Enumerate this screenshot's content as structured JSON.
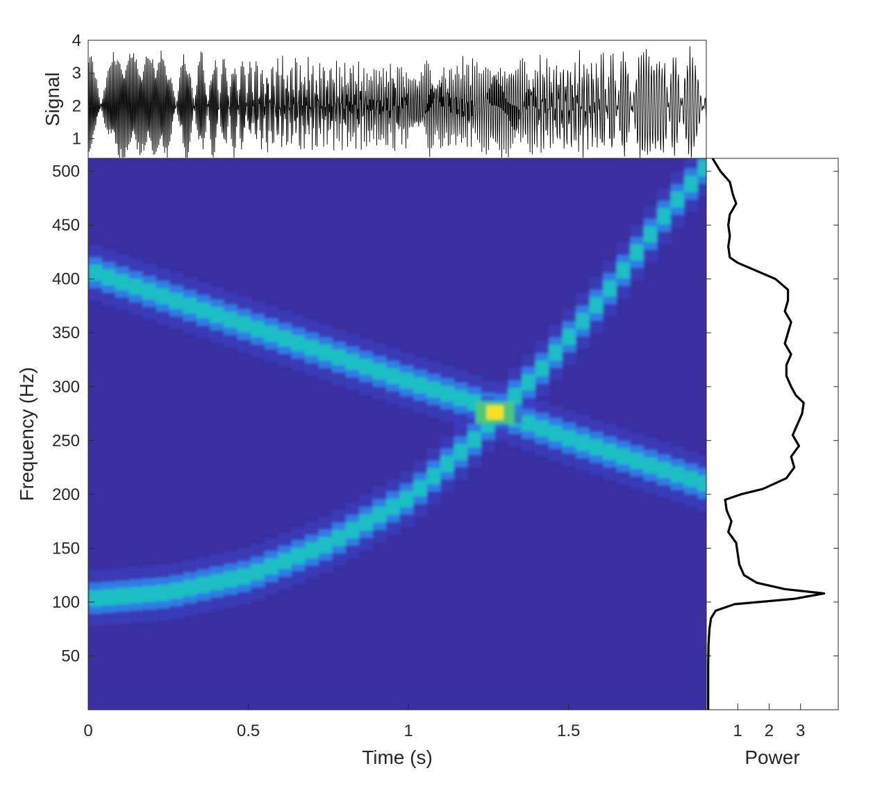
{
  "chart_data": [
    {
      "panel": "signal",
      "type": "line",
      "ylabel": "Signal",
      "xlim": [
        0,
        1.93
      ],
      "ylim": [
        0.4,
        4
      ],
      "yticks": [
        1,
        2,
        3,
        4
      ],
      "line_color": "#000000",
      "series": [
        {
          "amplitude_envelope": {
            "x": [
              0,
              0.25,
              0.5,
              0.75,
              0.8,
              1.0,
              1.2,
              1.25,
              1.3,
              1.35,
              1.5,
              1.75,
              1.93
            ],
            "half_range": [
              1.6,
              1.6,
              1.55,
              1.35,
              1.35,
              1.5,
              1.5,
              1.55,
              1.7,
              1.5,
              1.55,
              1.6,
              1.6
            ]
          },
          "center": 2.0
        }
      ]
    },
    {
      "panel": "spectrogram",
      "type": "heatmap",
      "xlabel": "Time (s)",
      "ylabel": "Frequency (Hz)",
      "xlim": [
        0,
        1.93
      ],
      "ylim": [
        0,
        512
      ],
      "xticks": [
        "0",
        "0.5",
        "1",
        "1.5"
      ],
      "xtick_values": [
        0,
        0.5,
        1,
        1.5
      ],
      "yticks": [
        50,
        100,
        150,
        200,
        250,
        300,
        350,
        400,
        450,
        500
      ],
      "colormap": "parula",
      "background_color": "#3a2fa0",
      "series": [
        {
          "shape": "linear-descending",
          "points": [
            [
              0.0,
              408
            ],
            [
              0.5,
              356
            ],
            [
              1.0,
              304
            ],
            [
              1.2,
              285
            ],
            [
              1.27,
              276
            ],
            [
              1.5,
              251
            ],
            [
              1.93,
              208
            ]
          ]
        },
        {
          "shape": "quadratic-ascending",
          "points": [
            [
              0.0,
              103
            ],
            [
              0.25,
              109
            ],
            [
              0.5,
              125
            ],
            [
              0.75,
              155
            ],
            [
              1.0,
              198
            ],
            [
              1.2,
              252
            ],
            [
              1.27,
              276
            ],
            [
              1.4,
              315
            ],
            [
              1.6,
              385
            ],
            [
              1.8,
              465
            ],
            [
              1.93,
              510
            ]
          ]
        }
      ],
      "peak": {
        "time": 1.27,
        "frequency": 276
      }
    },
    {
      "panel": "power",
      "type": "line",
      "xlabel": "Power",
      "xlim": [
        0,
        4.2
      ],
      "ylim": [
        0,
        512
      ],
      "xticks": [
        1,
        2,
        3
      ],
      "line_color": "#000000",
      "series": [
        {
          "frequency": [
            512,
            500,
            490,
            478,
            470,
            460,
            450,
            440,
            430,
            420,
            415,
            405,
            400,
            390,
            380,
            370,
            360,
            350,
            340,
            330,
            320,
            310,
            300,
            292,
            285,
            275,
            265,
            255,
            245,
            235,
            225,
            215,
            205,
            200,
            195,
            185,
            175,
            165,
            155,
            145,
            135,
            125,
            118,
            112,
            108,
            103,
            98,
            92,
            85,
            75,
            60,
            40,
            20,
            0
          ],
          "power": [
            0.2,
            0.45,
            0.75,
            0.85,
            0.95,
            0.75,
            0.7,
            0.75,
            0.7,
            0.75,
            1.0,
            1.8,
            2.2,
            2.6,
            2.6,
            2.5,
            2.7,
            2.6,
            2.5,
            2.7,
            2.55,
            2.55,
            2.7,
            2.85,
            3.1,
            3.05,
            2.9,
            2.75,
            2.95,
            2.7,
            2.8,
            2.55,
            1.8,
            1.1,
            0.6,
            0.65,
            0.8,
            0.7,
            0.95,
            1.0,
            1.05,
            1.2,
            1.6,
            2.5,
            3.75,
            2.8,
            0.9,
            0.3,
            0.15,
            0.1,
            0.07,
            0.06,
            0.06,
            0.06
          ]
        }
      ]
    }
  ]
}
